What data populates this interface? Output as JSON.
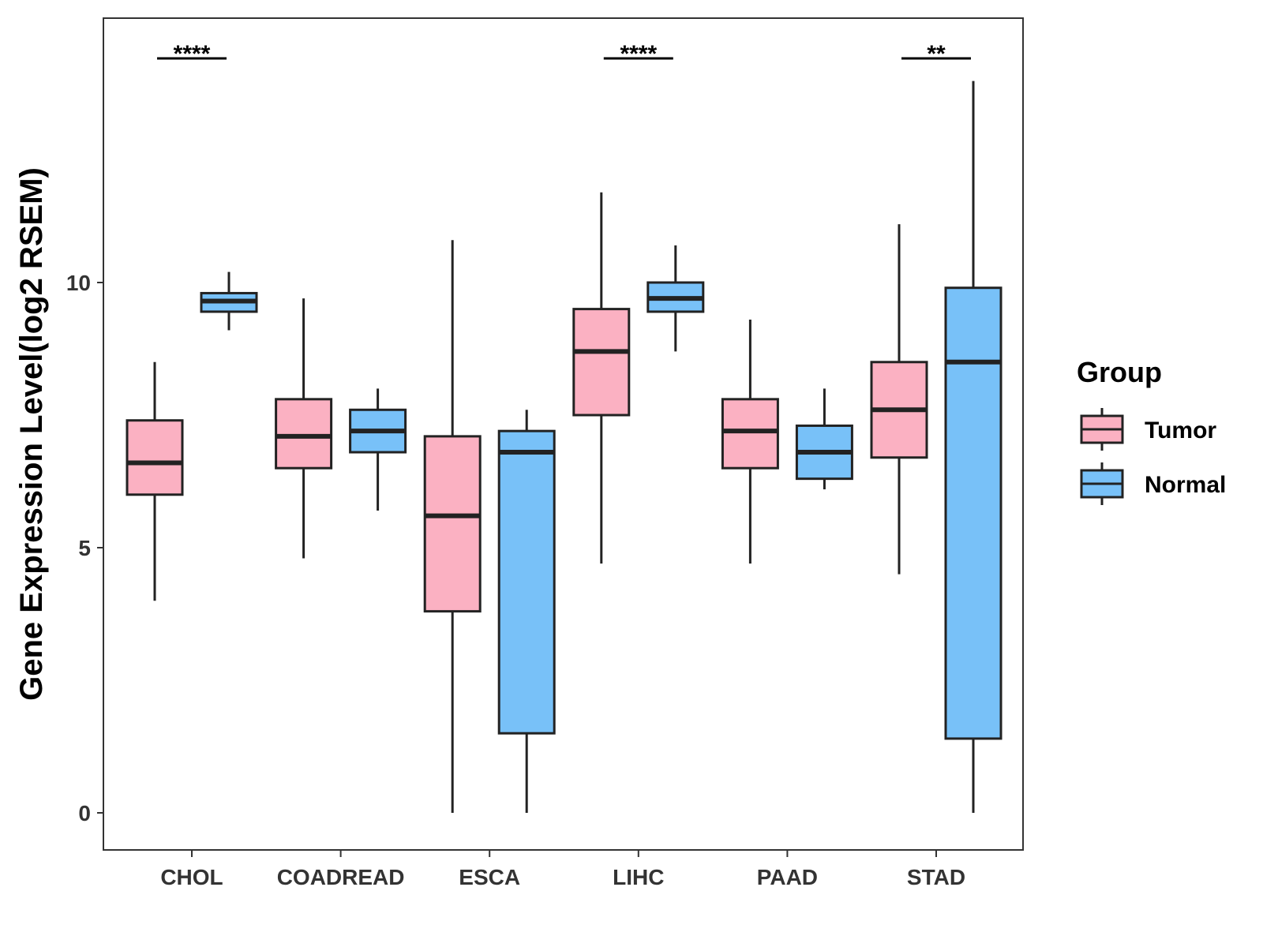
{
  "chart_data": {
    "type": "boxplot",
    "title": "",
    "xlabel": "",
    "ylabel": "Gene Expression Level(log2 RSEM)",
    "ylim": [
      -0.7,
      15.0
    ],
    "yticks": [
      0,
      5,
      10
    ],
    "grid": false,
    "categories": [
      "CHOL",
      "COADREAD",
      "ESCA",
      "LIHC",
      "PAAD",
      "STAD"
    ],
    "legend": {
      "title": "Group",
      "position": "right",
      "entries": [
        {
          "name": "Tumor",
          "color": "#FBB1C2"
        },
        {
          "name": "Normal",
          "color": "#78C1F8"
        }
      ]
    },
    "series": [
      {
        "name": "Tumor",
        "color": "#FBB1C2",
        "boxes": [
          {
            "category": "CHOL",
            "min": 4.0,
            "q1": 6.0,
            "median": 6.6,
            "q3": 7.4,
            "max": 8.5
          },
          {
            "category": "COADREAD",
            "min": 4.8,
            "q1": 6.5,
            "median": 7.1,
            "q3": 7.8,
            "max": 9.7
          },
          {
            "category": "ESCA",
            "min": 0.0,
            "q1": 3.8,
            "median": 5.6,
            "q3": 7.1,
            "max": 10.8
          },
          {
            "category": "LIHC",
            "min": 4.7,
            "q1": 7.5,
            "median": 8.7,
            "q3": 9.5,
            "max": 11.7
          },
          {
            "category": "PAAD",
            "min": 4.7,
            "q1": 6.5,
            "median": 7.2,
            "q3": 7.8,
            "max": 9.3
          },
          {
            "category": "STAD",
            "min": 4.5,
            "q1": 6.7,
            "median": 7.6,
            "q3": 8.5,
            "max": 11.1
          }
        ]
      },
      {
        "name": "Normal",
        "color": "#78C1F8",
        "boxes": [
          {
            "category": "CHOL",
            "min": 9.1,
            "q1": 9.45,
            "median": 9.65,
            "q3": 9.8,
            "max": 10.2
          },
          {
            "category": "COADREAD",
            "min": 5.7,
            "q1": 6.8,
            "median": 7.2,
            "q3": 7.6,
            "max": 8.0
          },
          {
            "category": "ESCA",
            "min": 0.0,
            "q1": 1.5,
            "median": 6.8,
            "q3": 7.2,
            "max": 7.6
          },
          {
            "category": "LIHC",
            "min": 8.7,
            "q1": 9.45,
            "median": 9.7,
            "q3": 10.0,
            "max": 10.7
          },
          {
            "category": "PAAD",
            "min": 6.1,
            "q1": 6.3,
            "median": 6.8,
            "q3": 7.3,
            "max": 8.0
          },
          {
            "category": "STAD",
            "min": 0.0,
            "q1": 1.4,
            "median": 8.5,
            "q3": 9.9,
            "max": 13.8
          }
        ]
      }
    ],
    "annotations": [
      {
        "category": "CHOL",
        "label": "****"
      },
      {
        "category": "LIHC",
        "label": "****"
      },
      {
        "category": "STAD",
        "label": "**"
      }
    ]
  }
}
